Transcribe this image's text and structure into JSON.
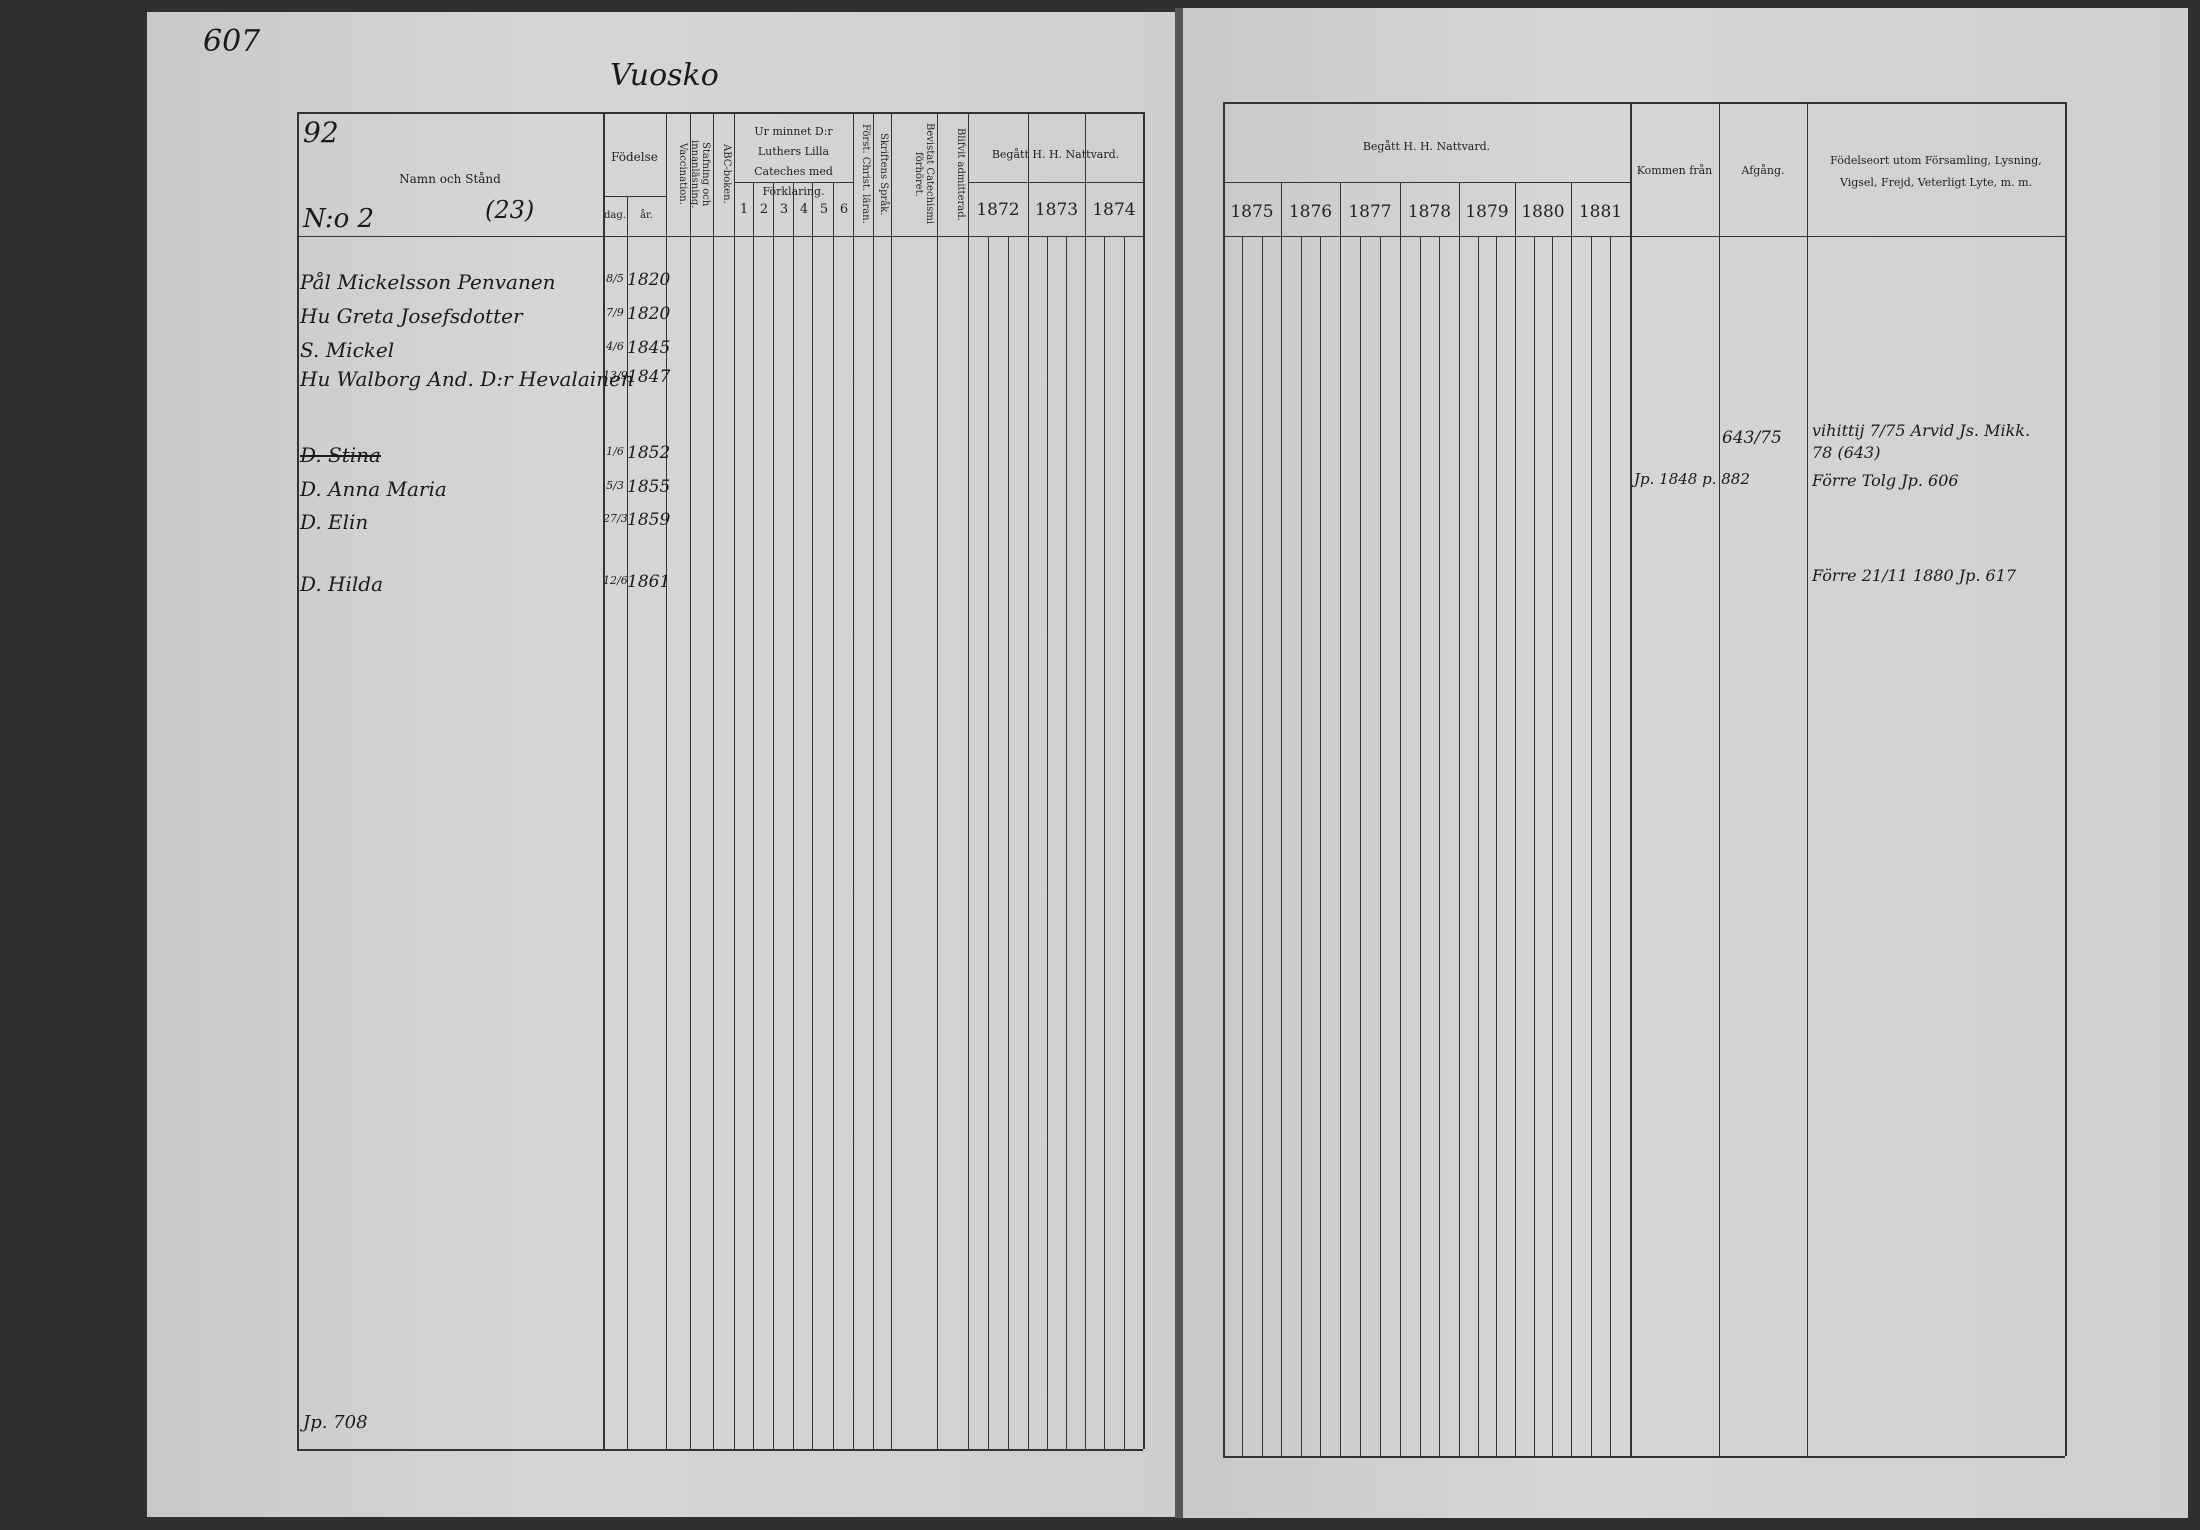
{
  "left_page": {
    "page_number": "607",
    "village": "Vuosko",
    "household": "92",
    "household_no": "N:o 2",
    "household_ref": "(23)",
    "header": {
      "name": "Namn och Stånd",
      "birth": "Födelse",
      "birth_day": "dag.",
      "birth_year": "år.",
      "vaccination": "Vaccination.",
      "reading": "Stafning och innanläsning.",
      "abc": "ABC-boken.",
      "catechism": "Ur minnet D:r Luthers Lilla Cateches med Förklaring.",
      "catechism_parts": [
        "1",
        "2",
        "3",
        "4",
        "5",
        "6"
      ],
      "christian": "Först. Christ. läran.",
      "scripture": "Skriftens Språk.",
      "hearing": "Bevistat Catechismi förhöret.",
      "admitted": "Blifvit admitterad.",
      "communion": "Begått H. H. Nattvard.",
      "communion_years": [
        "1872",
        "1873",
        "1874"
      ]
    },
    "rows": [
      {
        "name": "Pål Mickelsson Penvanen",
        "day": "8/5",
        "year": "1820"
      },
      {
        "name": "Hu Greta Josefsdotter",
        "day": "7/9",
        "year": "1820"
      },
      {
        "name": "S. Mickel",
        "day": "4/6",
        "year": "1845"
      },
      {
        "name": "Hu Walborg And. D:r Hevalainen",
        "day": "13/9",
        "year": "1847"
      },
      {
        "name": "D. Stina",
        "day": "1/6",
        "year": "1852"
      },
      {
        "name": "D. Anna Maria",
        "day": "5/3",
        "year": "1855"
      },
      {
        "name": "D. Elin",
        "day": "27/3",
        "year": "1859"
      },
      {
        "name": "D. Hilda",
        "day": "12/6",
        "year": "1861"
      }
    ],
    "footer_note": "Jp. 708"
  },
  "right_page": {
    "header": {
      "communion": "Begått H. H. Nattvard.",
      "communion_years": [
        "1875",
        "1876",
        "1877",
        "1878",
        "1879",
        "1880",
        "1881"
      ],
      "came_from": "Kommen från",
      "departure": "Afgång.",
      "remarks": "Födelseort utom Församling, Lysning, Vigsel, Frejd, Veterligt Lyte, m. m."
    },
    "entries": [
      {
        "departure": "643/75",
        "remarks": "vihittij 7/75 Arvid Js. Mikk. 78 (643)"
      },
      {
        "came_from": "Jp. 1848 p. 882",
        "remarks": "Förre Tolg Jp. 606"
      },
      {
        "remarks": "Förre 21/11 1880 Jp. 617"
      }
    ]
  }
}
